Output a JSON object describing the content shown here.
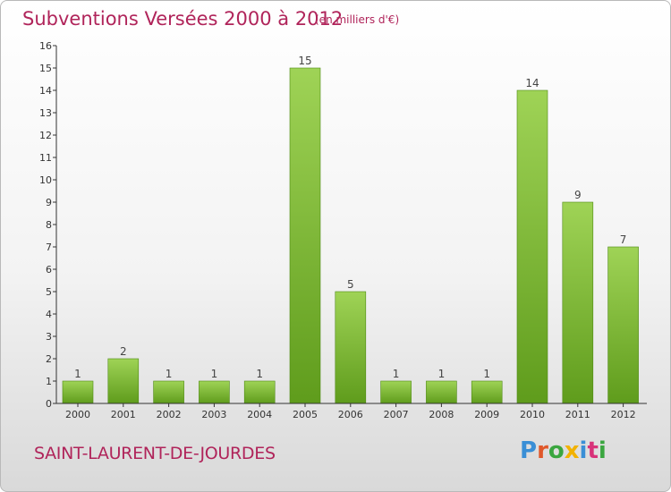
{
  "header": {
    "title": "Subventions Versées 2000 à 2012",
    "subtitle": "(en milliers d'€)"
  },
  "footer": {
    "commune": "SAINT-LAURENT-DE-JOURDES",
    "logo_letters": [
      {
        "char": "P",
        "color": "#3a8fd6"
      },
      {
        "char": "r",
        "color": "#e0582a"
      },
      {
        "char": "o",
        "color": "#3aa63f"
      },
      {
        "char": "x",
        "color": "#f2b200"
      },
      {
        "char": "i",
        "color": "#3a8fd6"
      },
      {
        "char": "t",
        "color": "#d8327a"
      },
      {
        "char": "i",
        "color": "#3aa63f"
      }
    ]
  },
  "colors": {
    "accent": "#b0245a",
    "bar_light": "#9fd356",
    "bar_dark": "#5f9c1c",
    "axis": "#333333"
  },
  "chart_data": {
    "type": "bar",
    "title": "Subventions Versées 2000 à 2012",
    "subtitle": "(en milliers d'€)",
    "categories": [
      "2000",
      "2001",
      "2002",
      "2003",
      "2004",
      "2005",
      "2006",
      "2007",
      "2008",
      "2009",
      "2010",
      "2011",
      "2012"
    ],
    "values": [
      1,
      2,
      1,
      1,
      1,
      15,
      5,
      1,
      1,
      1,
      14,
      9,
      7
    ],
    "ylim": [
      0,
      16
    ],
    "yticks": [
      "0",
      "1",
      "2",
      "3",
      "4",
      "5",
      "6",
      "7",
      "8",
      "9",
      "10",
      "11",
      "12",
      "13",
      "14",
      "15",
      "16"
    ],
    "grid": false,
    "legend": "none"
  }
}
